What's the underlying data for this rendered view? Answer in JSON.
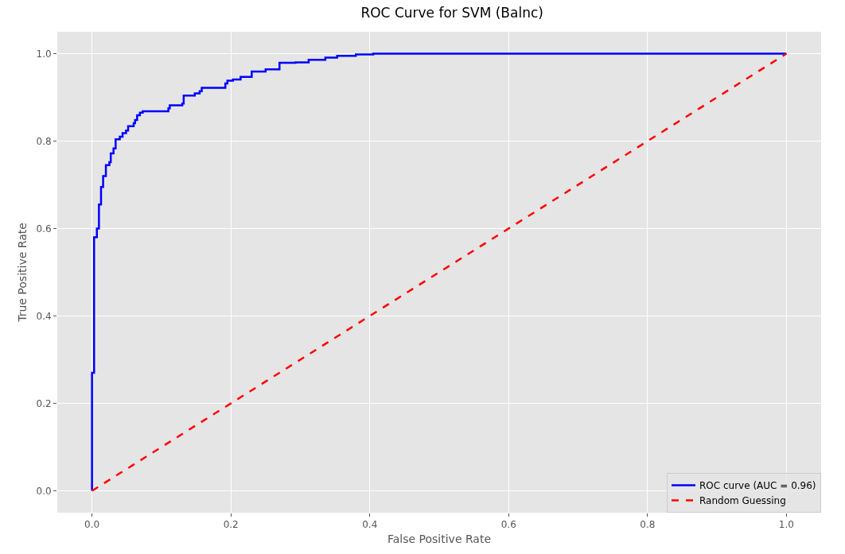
{
  "chart_data": {
    "type": "line",
    "title": "ROC Curve for SVM (Balnc)",
    "xlabel": "False Positive Rate",
    "ylabel": "True Positive Rate",
    "xlim": [
      -0.05,
      1.05
    ],
    "ylim": [
      -0.05,
      1.05
    ],
    "xticks": [
      {
        "value": 0,
        "label": "0.0"
      },
      {
        "value": 0.2,
        "label": "0.2"
      },
      {
        "value": 0.4,
        "label": "0.4"
      },
      {
        "value": 0.6,
        "label": "0.6"
      },
      {
        "value": 0.8,
        "label": "0.8"
      },
      {
        "value": 1,
        "label": "1.0"
      }
    ],
    "yticks": [
      {
        "value": 0,
        "label": "0.0"
      },
      {
        "value": 0.2,
        "label": "0.2"
      },
      {
        "value": 0.4,
        "label": "0.4"
      },
      {
        "value": 0.6,
        "label": "0.6"
      },
      {
        "value": 0.8,
        "label": "0.8"
      },
      {
        "value": 1,
        "label": "1.0"
      }
    ],
    "grid": true,
    "legend": "bottom right",
    "series": [
      {
        "name": "ROC curve (AUC = 0.96)",
        "type": "step",
        "color": "#0000ff",
        "line_style": "solid",
        "x": [
          0,
          0,
          0.003,
          0.007,
          0.01,
          0.013,
          0.016,
          0.02,
          0.025,
          0.027,
          0.031,
          0.034,
          0.04,
          0.044,
          0.049,
          0.052,
          0.06,
          0.062,
          0.065,
          0.069,
          0.073,
          0.11,
          0.112,
          0.13,
          0.132,
          0.148,
          0.155,
          0.158,
          0.192,
          0.195,
          0.203,
          0.214,
          0.23,
          0.25,
          0.27,
          0.293,
          0.312,
          0.336,
          0.353,
          0.38,
          0.405,
          1
        ],
        "values": [
          0,
          0.27,
          0.58,
          0.6,
          0.655,
          0.695,
          0.72,
          0.745,
          0.752,
          0.772,
          0.783,
          0.804,
          0.81,
          0.818,
          0.824,
          0.834,
          0.841,
          0.848,
          0.859,
          0.865,
          0.868,
          0.875,
          0.882,
          0.886,
          0.904,
          0.909,
          0.914,
          0.922,
          0.932,
          0.938,
          0.941,
          0.947,
          0.959,
          0.964,
          0.979,
          0.98,
          0.986,
          0.991,
          0.995,
          0.998,
          1,
          1
        ]
      },
      {
        "name": "Random Guessing",
        "type": "line",
        "color": "#ff0000",
        "line_style": "dashed",
        "x": [
          0,
          1
        ],
        "values": [
          0,
          1
        ]
      }
    ]
  }
}
